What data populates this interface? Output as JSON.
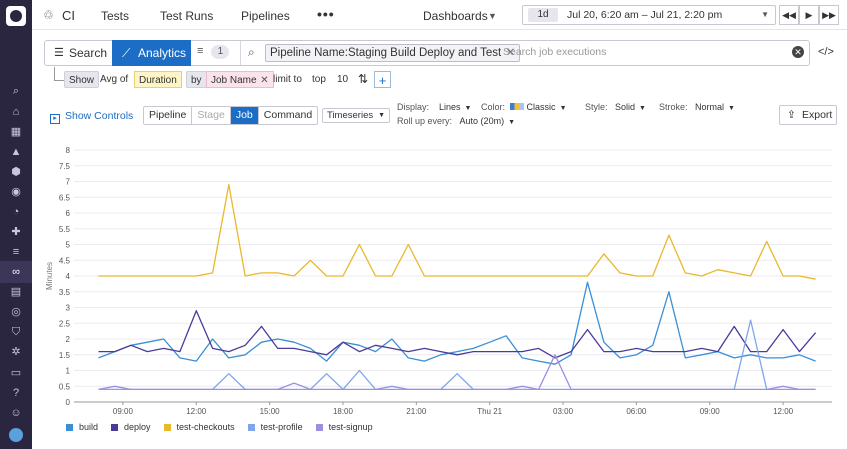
{
  "topbar": {
    "app_title": "CI",
    "nav": [
      "Tests",
      "Test Runs",
      "Pipelines"
    ],
    "more_label": "•••",
    "dashboards_label": "Dashboards",
    "time_chip": "1d",
    "time_range": "Jul 20, 6:20 am – Jul 21, 2:20 pm"
  },
  "search": {
    "search_label": "Search",
    "analytics_label": "Analytics",
    "filter_count": "1",
    "query_pill": "Pipeline Name:Staging Build Deploy and Test",
    "placeholder": "Search job executions"
  },
  "groupby": {
    "show": "Show",
    "measure": "Avg of",
    "field": "Duration",
    "by": "by",
    "group_field": "Job Name",
    "limit_label": "limit to",
    "limit_dir": "top",
    "limit_value": "10"
  },
  "controls": {
    "show_controls": "Show Controls",
    "levels": [
      "Pipeline",
      "Stage",
      "Job",
      "Command"
    ],
    "active_level": "Job",
    "disabled_level": "Stage",
    "viz": "Timeseries",
    "display_label": "Display:",
    "display_value": "Lines",
    "color_label": "Color:",
    "color_value": "Classic",
    "style_label": "Style:",
    "style_value": "Solid",
    "stroke_label": "Stroke:",
    "stroke_value": "Normal",
    "rollup_label": "Roll up every:",
    "rollup_value": "Auto (20m)",
    "export_label": "Export"
  },
  "icons": {
    "sidebar": [
      "search-icon",
      "home-icon",
      "dashboard-icon",
      "chart-icon",
      "hexagon-icon",
      "watchdog-icon",
      "gauge-icon",
      "puzzle-icon",
      "logs-icon",
      "ci-icon",
      "notebook-icon",
      "synthetics-icon",
      "security-icon",
      "gear-icon",
      "chat-icon",
      "help-icon",
      "team-icon",
      "avatar-icon"
    ]
  },
  "colors": {
    "brand_purple": "#2a2640",
    "accent_blue": "#1c6dc5",
    "build": "#3a8fd6",
    "deploy": "#4a3b98",
    "test-checkouts": "#e8b92b",
    "test-profile": "#7fa6ea",
    "test-signup": "#9d8fe0"
  },
  "chart_data": {
    "type": "line",
    "ylabel": "Minutes",
    "ylim": [
      0,
      8
    ],
    "yticks": [
      "0",
      "0.5",
      "1",
      "1.5",
      "2",
      "2.5",
      "3",
      "3.5",
      "4",
      "4.5",
      "5",
      "5.5",
      "6",
      "6.5",
      "7",
      "7.5",
      "8"
    ],
    "x_tick_labels": [
      "09:00",
      "12:00",
      "15:00",
      "18:00",
      "21:00",
      "Thu 21",
      "03:00",
      "06:00",
      "09:00",
      "12:00"
    ],
    "x_hours": [
      8,
      8.67,
      9.33,
      10,
      10.67,
      11.33,
      12,
      12.67,
      13.33,
      14,
      14.67,
      15.33,
      16,
      16.67,
      17.33,
      18,
      18.67,
      19.33,
      20,
      20.67,
      21.33,
      22,
      22.67,
      23.33,
      24,
      24.67,
      25.33,
      26,
      26.67,
      27.33,
      28,
      28.67,
      29.33,
      30,
      30.67,
      31.33,
      32,
      32.67,
      33.33,
      34,
      34.67,
      35.33,
      36,
      36.67,
      37.33
    ],
    "grid": true,
    "legend": "bottom-left",
    "series": [
      {
        "name": "build",
        "values": [
          1.4,
          1.6,
          1.8,
          1.9,
          2.0,
          1.4,
          1.3,
          2.0,
          1.4,
          1.5,
          1.9,
          2.0,
          1.9,
          1.7,
          1.3,
          1.9,
          1.8,
          1.6,
          2.0,
          1.4,
          1.3,
          1.5,
          1.6,
          1.7,
          1.9,
          2.1,
          1.4,
          1.3,
          1.2,
          1.5,
          3.8,
          1.9,
          1.4,
          1.5,
          1.8,
          3.5,
          1.4,
          1.5,
          1.6,
          1.4,
          1.5,
          1.4,
          1.4,
          1.5,
          1.3
        ]
      },
      {
        "name": "deploy",
        "values": [
          1.6,
          1.6,
          1.8,
          1.6,
          1.7,
          1.6,
          2.9,
          1.7,
          1.6,
          1.8,
          2.4,
          1.7,
          1.7,
          1.6,
          1.5,
          1.9,
          1.6,
          1.8,
          1.7,
          1.6,
          1.7,
          1.6,
          1.5,
          1.6,
          1.6,
          1.6,
          1.6,
          1.7,
          1.4,
          1.6,
          2.3,
          1.6,
          1.6,
          1.7,
          1.6,
          1.6,
          1.6,
          1.7,
          1.6,
          2.4,
          1.6,
          1.6,
          2.3,
          1.6,
          2.2
        ]
      },
      {
        "name": "test-checkouts",
        "values": [
          4.0,
          4.0,
          4.0,
          4.0,
          4.0,
          4.0,
          4.0,
          4.1,
          6.9,
          4.0,
          4.1,
          4.1,
          4.0,
          4.5,
          4.0,
          4.0,
          5.0,
          4.0,
          4.0,
          5.0,
          4.0,
          4.0,
          4.0,
          4.0,
          4.0,
          4.0,
          4.0,
          4.0,
          4.0,
          4.0,
          4.0,
          4.7,
          4.1,
          4.0,
          4.0,
          5.3,
          4.1,
          4.0,
          4.2,
          4.1,
          4.0,
          5.1,
          4.0,
          4.0,
          3.9
        ]
      },
      {
        "name": "test-profile",
        "values": [
          0.4,
          0.4,
          0.4,
          0.4,
          0.4,
          0.4,
          0.4,
          0.4,
          0.9,
          0.4,
          0.4,
          0.4,
          0.4,
          0.4,
          0.9,
          0.4,
          1.0,
          0.4,
          0.4,
          0.4,
          0.4,
          0.4,
          0.9,
          0.4,
          0.4,
          0.4,
          0.4,
          0.4,
          0.4,
          0.4,
          0.4,
          0.4,
          0.4,
          0.4,
          0.4,
          0.4,
          0.4,
          0.4,
          0.4,
          0.4,
          2.6,
          0.4,
          0.4,
          0.4,
          0.4
        ]
      },
      {
        "name": "test-signup",
        "values": [
          0.4,
          0.5,
          0.4,
          0.4,
          0.4,
          0.4,
          0.4,
          0.4,
          0.4,
          0.4,
          0.4,
          0.4,
          0.6,
          0.4,
          0.4,
          0.4,
          0.4,
          0.4,
          0.5,
          0.4,
          0.4,
          0.4,
          0.4,
          0.4,
          0.4,
          0.4,
          0.5,
          0.4,
          1.5,
          0.4,
          0.4,
          0.4,
          0.4,
          0.4,
          0.4,
          0.4,
          0.4,
          0.4,
          0.4,
          0.4,
          0.4,
          0.4,
          0.5,
          0.4,
          0.4
        ]
      }
    ]
  }
}
